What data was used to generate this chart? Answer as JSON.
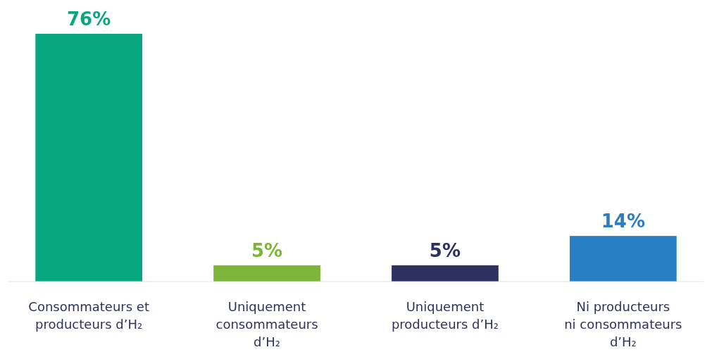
{
  "chart_data": {
    "type": "bar",
    "categories": [
      "Consommateurs et producteurs d’H₂",
      "Uniquement consommateurs d’H₂",
      "Uniquement producteurs d’H₂",
      "Ni producteurs ni consommateurs d’H₂"
    ],
    "values": [
      76,
      5,
      5,
      14
    ],
    "colors": [
      "#07a880",
      "#7db53a",
      "#2e3160",
      "#2a7fc4"
    ],
    "value_labels": [
      "76%",
      "5%",
      "5%",
      "14%"
    ]
  }
}
